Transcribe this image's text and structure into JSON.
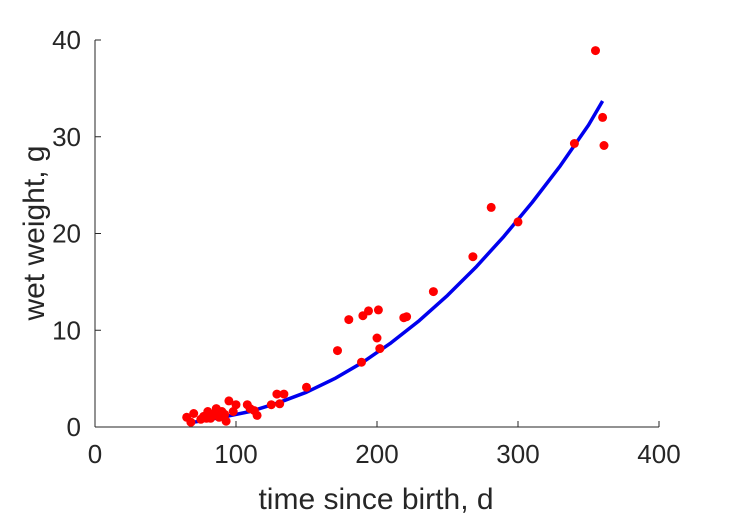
{
  "chart_data": {
    "type": "scatter",
    "title": "",
    "xlabel": "time since birth, d",
    "ylabel": "wet weight, g",
    "xlim": [
      0,
      400
    ],
    "ylim": [
      0,
      40
    ],
    "x_ticks": [
      {
        "value": 0,
        "label": "0"
      },
      {
        "value": 100,
        "label": "100"
      },
      {
        "value": 200,
        "label": "200"
      },
      {
        "value": 300,
        "label": "300"
      },
      {
        "value": 400,
        "label": "400"
      }
    ],
    "y_ticks": [
      {
        "value": 0,
        "label": "0"
      },
      {
        "value": 10,
        "label": "10"
      },
      {
        "value": 20,
        "label": "20"
      },
      {
        "value": 30,
        "label": "30"
      },
      {
        "value": 40,
        "label": "40"
      }
    ],
    "grid": false,
    "legend": "none",
    "series": [
      {
        "kind": "points",
        "color": "#ff0000",
        "x": [
          65,
          68,
          70,
          75,
          77,
          79,
          80,
          81,
          82,
          84,
          85,
          86,
          88,
          90,
          92,
          93,
          95,
          98,
          100,
          108,
          110,
          113,
          115,
          125,
          129,
          131,
          134,
          150,
          172,
          180,
          189,
          190,
          194,
          200,
          201,
          202,
          219,
          221,
          240,
          268,
          281,
          300,
          340,
          355,
          360,
          361
        ],
        "y": [
          1.0,
          0.5,
          1.4,
          0.8,
          1.1,
          0.9,
          1.6,
          1.3,
          0.9,
          1.2,
          1.4,
          1.9,
          1.0,
          1.6,
          1.3,
          0.6,
          2.7,
          1.6,
          2.3,
          2.3,
          1.9,
          1.7,
          1.2,
          2.3,
          3.4,
          2.4,
          3.4,
          4.1,
          7.9,
          11.1,
          6.7,
          11.5,
          12.0,
          9.2,
          12.1,
          8.1,
          11.3,
          11.4,
          14.0,
          17.6,
          22.7,
          21.2,
          29.3,
          38.9,
          32.0,
          29.1
        ]
      },
      {
        "kind": "curve",
        "color": "#0000ee",
        "x": [
          70,
          90,
          110,
          130,
          150,
          170,
          190,
          210,
          230,
          250,
          270,
          290,
          310,
          330,
          350,
          360
        ],
        "y": [
          0.5,
          1.0,
          1.6,
          2.5,
          3.6,
          5.0,
          6.7,
          8.7,
          11.0,
          13.6,
          16.5,
          19.7,
          23.2,
          27.0,
          31.2,
          33.7
        ]
      }
    ]
  }
}
